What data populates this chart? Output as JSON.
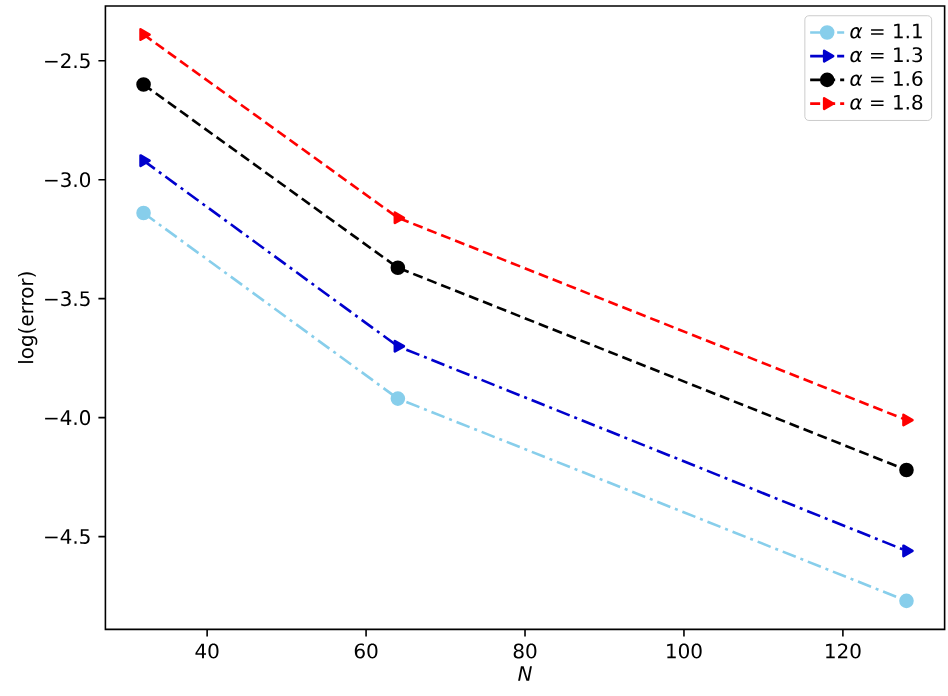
{
  "chart_data": {
    "type": "line",
    "xlabel": "N",
    "ylabel": "log(error)",
    "x": [
      32,
      64,
      128
    ],
    "series": [
      {
        "name": "*α* = 1.1",
        "color": "#87ceeb",
        "values": [
          -3.14,
          -3.92,
          -4.77
        ],
        "marker": "circle",
        "line_style": "dashdot"
      },
      {
        "name": "*α* = 1.3",
        "color": "#0000cd",
        "values": [
          -2.92,
          -3.7,
          -4.56
        ],
        "marker": "triangle",
        "line_style": "dashdot"
      },
      {
        "name": "*α* = 1.6",
        "color": "#000000",
        "values": [
          -2.6,
          -3.37,
          -4.22
        ],
        "marker": "circle",
        "line_style": "dashed"
      },
      {
        "name": "*α* = 1.8",
        "color": "#ff0000",
        "values": [
          -2.39,
          -3.16,
          -4.01
        ],
        "marker": "triangle",
        "line_style": "dashed"
      }
    ],
    "xlim": [
      27.2,
      132.8
    ],
    "ylim": [
      -4.89,
      -2.27
    ],
    "xticks": [
      40,
      60,
      80,
      100,
      120
    ],
    "yticks": [
      {
        "value": -4.5,
        "label": "−4.5"
      },
      {
        "value": -4.0,
        "label": "−4.0"
      },
      {
        "value": -3.5,
        "label": "−3.5"
      },
      {
        "value": -3.0,
        "label": "−3.0"
      },
      {
        "value": -2.5,
        "label": "−2.5"
      }
    ],
    "grid": false,
    "legend": "top right"
  }
}
